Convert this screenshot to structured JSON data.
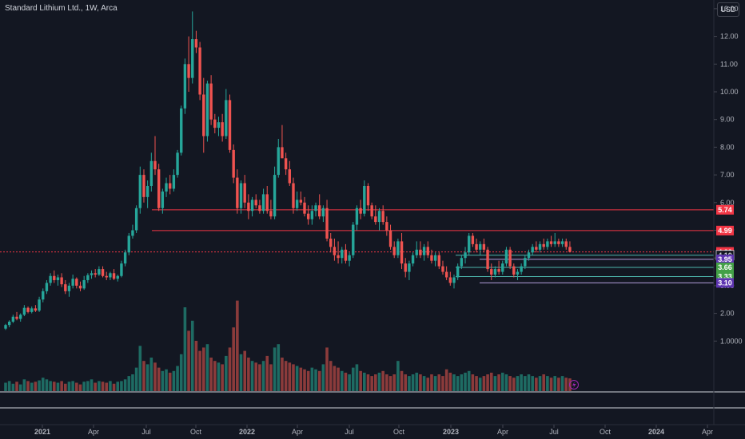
{
  "header": {
    "title": "Standard Lithium Ltd., 1W, Arca",
    "currency": "USD"
  },
  "colors": {
    "background": "#131722",
    "up": "#26a69a",
    "down": "#ef5350",
    "volume_up": "#1e6b63",
    "volume_down": "#8b3b3b",
    "resistance": "#f23645",
    "support": "#4db6ac",
    "support_low": "#b39ddb",
    "tag_purple": "#5e35b1",
    "tag_green": "#43a047"
  },
  "chart_data": {
    "type": "candlestick",
    "title": "Standard Lithium Ltd., 1W, Arca",
    "xlabel": "",
    "ylabel": "",
    "y_ticks": [
      "13.00",
      "12.00",
      "11.00",
      "10.00",
      "9.00",
      "8.00",
      "7.00",
      "6.00",
      "5.00",
      "4.00",
      "3.00",
      "2.00",
      "1.0000"
    ],
    "x_ticks": [
      "2021",
      "Apr",
      "Jul",
      "Oct",
      "2022",
      "Apr",
      "Jul",
      "Oct",
      "2023",
      "Apr",
      "Jul",
      "Oct",
      "2024",
      "Apr"
    ],
    "candles": [
      [
        1.45,
        1.62,
        1.4,
        1.58
      ],
      [
        1.58,
        1.75,
        1.5,
        1.7
      ],
      [
        1.7,
        1.95,
        1.65,
        1.88
      ],
      [
        1.88,
        2.05,
        1.75,
        1.8
      ],
      [
        1.8,
        2.0,
        1.7,
        1.95
      ],
      [
        1.95,
        2.3,
        1.9,
        2.2
      ],
      [
        2.2,
        2.25,
        2.0,
        2.05
      ],
      [
        2.05,
        2.25,
        2.0,
        2.18
      ],
      [
        2.18,
        2.3,
        2.05,
        2.1
      ],
      [
        2.1,
        2.6,
        2.05,
        2.5
      ],
      [
        2.5,
        2.9,
        2.4,
        2.8
      ],
      [
        2.8,
        3.2,
        2.7,
        3.1
      ],
      [
        3.1,
        3.45,
        3.0,
        3.35
      ],
      [
        3.35,
        3.55,
        3.1,
        3.2
      ],
      [
        3.2,
        3.4,
        3.0,
        3.3
      ],
      [
        3.3,
        3.45,
        2.95,
        3.05
      ],
      [
        3.05,
        3.2,
        2.7,
        2.8
      ],
      [
        2.8,
        3.1,
        2.6,
        3.0
      ],
      [
        3.0,
        3.4,
        2.9,
        3.25
      ],
      [
        3.25,
        3.3,
        2.9,
        3.0
      ],
      [
        3.0,
        3.15,
        2.8,
        2.9
      ],
      [
        2.9,
        3.35,
        2.85,
        3.2
      ],
      [
        3.2,
        3.45,
        3.1,
        3.38
      ],
      [
        3.38,
        3.55,
        3.25,
        3.45
      ],
      [
        3.45,
        3.6,
        3.3,
        3.4
      ],
      [
        3.4,
        3.7,
        3.35,
        3.6
      ],
      [
        3.6,
        3.7,
        3.3,
        3.35
      ],
      [
        3.35,
        3.5,
        3.2,
        3.3
      ],
      [
        3.3,
        3.5,
        3.2,
        3.45
      ],
      [
        3.45,
        3.6,
        3.2,
        3.25
      ],
      [
        3.25,
        3.4,
        3.15,
        3.35
      ],
      [
        3.35,
        3.9,
        3.3,
        3.8
      ],
      [
        3.8,
        4.3,
        3.7,
        4.2
      ],
      [
        4.2,
        4.9,
        4.1,
        4.8
      ],
      [
        4.8,
        5.2,
        4.7,
        5.0
      ],
      [
        5.0,
        5.9,
        4.9,
        5.8
      ],
      [
        5.8,
        7.3,
        5.6,
        7.0
      ],
      [
        7.0,
        7.2,
        6.0,
        6.2
      ],
      [
        6.2,
        6.8,
        5.8,
        6.6
      ],
      [
        6.6,
        7.8,
        6.4,
        7.5
      ],
      [
        7.5,
        8.4,
        7.0,
        7.2
      ],
      [
        7.2,
        7.4,
        5.7,
        5.8
      ],
      [
        5.8,
        6.5,
        5.6,
        6.4
      ],
      [
        6.4,
        6.9,
        6.2,
        6.7
      ],
      [
        6.7,
        7.0,
        6.3,
        6.5
      ],
      [
        6.5,
        7.2,
        6.4,
        7.0
      ],
      [
        7.0,
        7.9,
        6.9,
        7.8
      ],
      [
        7.8,
        9.5,
        7.7,
        9.4
      ],
      [
        9.4,
        11.2,
        9.2,
        11.0
      ],
      [
        11.0,
        12.0,
        10.0,
        10.5
      ],
      [
        10.5,
        12.9,
        10.3,
        11.9
      ],
      [
        11.9,
        12.2,
        11.4,
        11.6
      ],
      [
        11.6,
        11.8,
        9.7,
        9.9
      ],
      [
        9.9,
        10.5,
        7.8,
        8.4
      ],
      [
        8.4,
        10.4,
        8.2,
        10.3
      ],
      [
        10.3,
        10.6,
        8.8,
        9.0
      ],
      [
        9.0,
        9.2,
        8.5,
        8.7
      ],
      [
        8.7,
        9.1,
        8.4,
        8.9
      ],
      [
        8.9,
        9.2,
        8.2,
        8.4
      ],
      [
        8.4,
        10.1,
        8.3,
        9.7
      ],
      [
        9.7,
        9.9,
        7.8,
        7.9
      ],
      [
        7.9,
        8.1,
        6.7,
        6.9
      ],
      [
        6.9,
        7.2,
        5.6,
        5.8
      ],
      [
        5.8,
        6.8,
        5.6,
        6.7
      ],
      [
        6.7,
        7.0,
        5.8,
        6.0
      ],
      [
        6.0,
        6.3,
        5.4,
        5.7
      ],
      [
        5.7,
        6.2,
        5.5,
        6.1
      ],
      [
        6.1,
        6.3,
        5.8,
        5.9
      ],
      [
        5.9,
        6.1,
        5.6,
        5.7
      ],
      [
        5.7,
        6.5,
        5.6,
        6.3
      ],
      [
        6.3,
        6.6,
        5.6,
        5.7
      ],
      [
        5.7,
        6.1,
        5.4,
        5.5
      ],
      [
        5.5,
        7.3,
        5.4,
        7.0
      ],
      [
        7.0,
        8.3,
        6.9,
        8.0
      ],
      [
        8.0,
        8.8,
        7.6,
        7.6
      ],
      [
        7.6,
        7.8,
        7.0,
        7.2
      ],
      [
        7.2,
        7.5,
        6.6,
        6.7
      ],
      [
        6.7,
        6.9,
        5.6,
        5.8
      ],
      [
        5.8,
        6.4,
        5.7,
        6.1
      ],
      [
        6.1,
        6.4,
        5.9,
        6.0
      ],
      [
        6.0,
        6.2,
        5.5,
        5.6
      ],
      [
        5.6,
        5.9,
        5.2,
        5.4
      ],
      [
        5.4,
        5.9,
        5.2,
        5.7
      ],
      [
        5.7,
        6.0,
        5.5,
        5.9
      ],
      [
        5.9,
        6.3,
        5.4,
        5.5
      ],
      [
        5.5,
        5.9,
        5.3,
        5.8
      ],
      [
        5.8,
        6.1,
        4.6,
        4.7
      ],
      [
        4.7,
        4.9,
        4.2,
        4.4
      ],
      [
        4.4,
        4.7,
        3.9,
        4.1
      ],
      [
        4.1,
        4.6,
        3.8,
        4.0
      ],
      [
        4.0,
        4.4,
        3.8,
        4.3
      ],
      [
        4.3,
        4.5,
        3.8,
        3.9
      ],
      [
        3.9,
        4.2,
        3.7,
        4.1
      ],
      [
        4.1,
        5.3,
        4.0,
        5.2
      ],
      [
        5.2,
        5.9,
        5.0,
        5.8
      ],
      [
        5.8,
        6.1,
        5.4,
        5.6
      ],
      [
        5.6,
        6.8,
        5.5,
        6.6
      ],
      [
        6.6,
        6.7,
        5.7,
        5.9
      ],
      [
        5.9,
        6.0,
        5.4,
        5.5
      ],
      [
        5.5,
        5.9,
        5.2,
        5.3
      ],
      [
        5.3,
        5.8,
        5.0,
        5.7
      ],
      [
        5.7,
        5.9,
        5.2,
        5.3
      ],
      [
        5.3,
        5.5,
        4.8,
        5.0
      ],
      [
        5.0,
        5.2,
        4.3,
        4.4
      ],
      [
        4.4,
        4.6,
        4.0,
        4.1
      ],
      [
        4.1,
        4.7,
        4.0,
        4.6
      ],
      [
        4.6,
        4.9,
        3.6,
        3.8
      ],
      [
        3.8,
        4.0,
        3.3,
        3.5
      ],
      [
        3.5,
        3.9,
        3.2,
        3.8
      ],
      [
        3.8,
        4.2,
        3.7,
        4.1
      ],
      [
        4.1,
        4.6,
        4.0,
        4.3
      ],
      [
        4.3,
        4.6,
        4.0,
        4.1
      ],
      [
        4.1,
        4.5,
        3.9,
        4.4
      ],
      [
        4.4,
        4.6,
        4.0,
        4.1
      ],
      [
        4.1,
        4.3,
        3.8,
        3.9
      ],
      [
        3.9,
        4.2,
        3.7,
        4.1
      ],
      [
        4.1,
        4.2,
        3.6,
        3.7
      ],
      [
        3.7,
        3.9,
        3.4,
        3.5
      ],
      [
        3.5,
        3.7,
        3.2,
        3.3
      ],
      [
        3.3,
        3.5,
        3.0,
        3.1
      ],
      [
        3.1,
        3.4,
        2.9,
        3.3
      ],
      [
        3.3,
        3.8,
        3.2,
        3.7
      ],
      [
        3.7,
        4.1,
        3.6,
        4.0
      ],
      [
        4.0,
        4.4,
        3.8,
        4.2
      ],
      [
        4.2,
        4.9,
        4.1,
        4.8
      ],
      [
        4.8,
        4.9,
        4.4,
        4.5
      ],
      [
        4.5,
        4.7,
        4.2,
        4.3
      ],
      [
        4.3,
        4.6,
        4.1,
        4.5
      ],
      [
        4.5,
        4.7,
        4.2,
        4.3
      ],
      [
        4.3,
        4.4,
        3.5,
        3.6
      ],
      [
        3.6,
        3.8,
        3.2,
        3.4
      ],
      [
        3.4,
        3.7,
        3.3,
        3.6
      ],
      [
        3.6,
        3.9,
        3.4,
        3.5
      ],
      [
        3.5,
        3.9,
        3.4,
        3.8
      ],
      [
        3.8,
        4.4,
        3.7,
        4.3
      ],
      [
        4.3,
        4.4,
        3.6,
        3.7
      ],
      [
        3.7,
        3.8,
        3.3,
        3.4
      ],
      [
        3.4,
        3.6,
        3.2,
        3.5
      ],
      [
        3.5,
        3.8,
        3.4,
        3.7
      ],
      [
        3.7,
        4.1,
        3.6,
        4.0
      ],
      [
        4.0,
        4.3,
        3.9,
        4.2
      ],
      [
        4.2,
        4.5,
        4.1,
        4.4
      ],
      [
        4.4,
        4.6,
        4.2,
        4.3
      ],
      [
        4.3,
        4.6,
        4.2,
        4.5
      ],
      [
        4.5,
        4.7,
        4.3,
        4.4
      ],
      [
        4.4,
        4.7,
        4.3,
        4.6
      ],
      [
        4.6,
        4.8,
        4.4,
        4.5
      ],
      [
        4.5,
        4.9,
        4.4,
        4.6
      ],
      [
        4.6,
        4.7,
        4.4,
        4.5
      ],
      [
        4.5,
        4.7,
        4.4,
        4.6
      ],
      [
        4.6,
        4.7,
        4.3,
        4.4
      ],
      [
        4.4,
        4.6,
        4.2,
        4.22
      ]
    ],
    "volume": [
      0.25,
      0.3,
      0.22,
      0.28,
      0.2,
      0.35,
      0.3,
      0.25,
      0.28,
      0.32,
      0.4,
      0.35,
      0.3,
      0.28,
      0.25,
      0.3,
      0.22,
      0.28,
      0.3,
      0.25,
      0.2,
      0.28,
      0.3,
      0.35,
      0.25,
      0.3,
      0.28,
      0.25,
      0.3,
      0.22,
      0.28,
      0.3,
      0.35,
      0.45,
      0.5,
      0.7,
      1.35,
      0.9,
      0.8,
      1.0,
      0.85,
      0.7,
      0.6,
      0.65,
      0.55,
      0.6,
      0.75,
      1.1,
      2.5,
      1.8,
      2.1,
      1.5,
      1.2,
      1.3,
      1.4,
      1.0,
      0.9,
      0.85,
      0.8,
      1.05,
      1.3,
      1.9,
      2.7,
      1.1,
      1.2,
      1.0,
      0.9,
      0.85,
      0.8,
      0.9,
      1.05,
      0.8,
      1.3,
      1.4,
      1.0,
      0.9,
      0.85,
      0.8,
      0.75,
      0.7,
      0.65,
      0.6,
      0.7,
      0.65,
      0.6,
      0.8,
      1.3,
      0.9,
      0.75,
      0.7,
      0.6,
      0.55,
      0.5,
      0.7,
      0.8,
      0.6,
      0.55,
      0.5,
      0.45,
      0.5,
      0.55,
      0.6,
      0.5,
      0.45,
      0.5,
      0.9,
      0.6,
      0.5,
      0.45,
      0.5,
      0.55,
      0.5,
      0.45,
      0.4,
      0.5,
      0.45,
      0.5,
      0.45,
      0.65,
      0.55,
      0.5,
      0.45,
      0.5,
      0.55,
      0.6,
      0.5,
      0.45,
      0.4,
      0.45,
      0.5,
      0.55,
      0.45,
      0.5,
      0.55,
      0.5,
      0.45,
      0.4,
      0.45,
      0.5,
      0.45,
      0.5,
      0.45,
      0.4,
      0.45,
      0.5,
      0.45,
      0.4,
      0.45,
      0.4,
      0.45,
      0.4,
      0.38
    ],
    "price_levels": [
      {
        "value": 5.74,
        "label": "5.74",
        "style": "resistance"
      },
      {
        "value": 4.99,
        "label": "4.99",
        "style": "resistance"
      },
      {
        "value": 4.22,
        "label": "4.22",
        "style": "last"
      },
      {
        "value": 4.1,
        "label": "4.10",
        "style": "support"
      },
      {
        "value": 3.95,
        "label": "3.95",
        "style": "support_low"
      },
      {
        "value": 3.66,
        "label": "3.66",
        "style": "support"
      },
      {
        "value": 3.33,
        "label": "3.33",
        "style": "support"
      },
      {
        "value": 3.1,
        "label": "3.10",
        "style": "support_low"
      }
    ],
    "ylim": [
      0,
      13.8
    ],
    "grid": false,
    "legend": "none"
  }
}
